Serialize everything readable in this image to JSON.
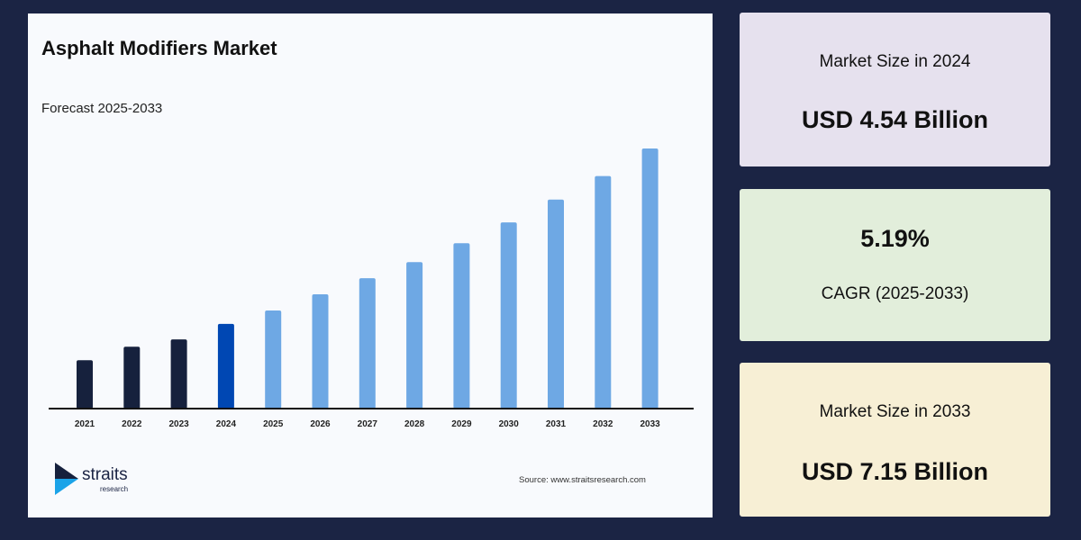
{
  "colors": {
    "background": "#1b2444",
    "historical": "#16213d",
    "base_year": "#0047b3",
    "forecast": "#6ea8e4",
    "card1": "#e6e1ee",
    "card2": "#e2eedb",
    "card3": "#f7efd5"
  },
  "chart_data": {
    "type": "bar",
    "title": "Asphalt Modifiers Market",
    "subtitle": "Forecast 2025-2033",
    "categories": [
      "2021",
      "2022",
      "2023",
      "2024",
      "2025",
      "2026",
      "2027",
      "2028",
      "2029",
      "2030",
      "2031",
      "2032",
      "2033"
    ],
    "values": [
      4.0,
      4.2,
      4.31,
      4.54,
      4.74,
      4.98,
      5.22,
      5.46,
      5.74,
      6.05,
      6.39,
      6.74,
      7.15
    ],
    "unit": "USD Billion",
    "xlabel": "",
    "ylabel": "",
    "ylim": [
      3.28,
      7.15
    ],
    "grid": false,
    "legend": "none"
  },
  "logo": {
    "name": "straits",
    "sub": "research"
  },
  "source": "Source: www.straitsresearch.com",
  "cards": [
    {
      "label": "Market Size in 2024",
      "value": "USD 4.54 Billion"
    },
    {
      "value": "5.19%",
      "label": "CAGR (2025-2033)"
    },
    {
      "label": "Market Size in 2033",
      "value": "USD 7.15 Billion"
    }
  ]
}
